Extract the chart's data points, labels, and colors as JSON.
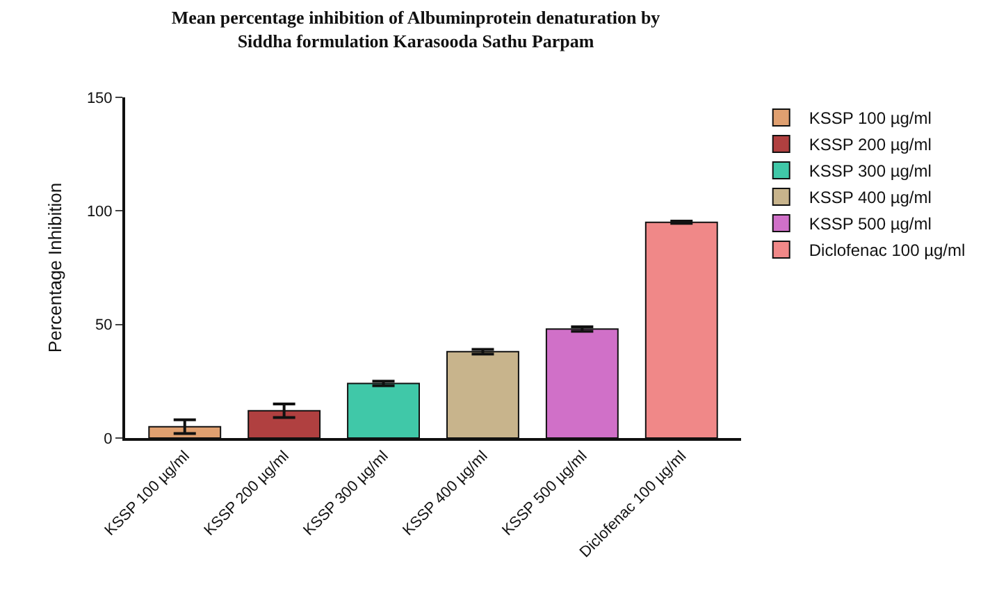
{
  "chart_data": {
    "type": "bar",
    "title": "Mean percentage inhibition of Albuminprotein denaturation by\nSiddha formulation Karasooda Sathu Parpam",
    "ylabel": "Percentage Inhibition",
    "categories": [
      "KSSP 100 µg/ml",
      "KSSP 200 µg/ml",
      "KSSP 300 µg/ml",
      "KSSP 400 µg/ml",
      "KSSP 500 µg/ml",
      "Diclofenac 100 µg/ml"
    ],
    "series": [
      {
        "name": "KSSP 100 µg/ml",
        "color": "#e0a070",
        "values": [
          5,
          null,
          null,
          null,
          null,
          null
        ],
        "errors": [
          3,
          null,
          null,
          null,
          null,
          null
        ]
      },
      {
        "name": "KSSP 200 µg/ml",
        "color": "#b04040",
        "values": [
          null,
          12,
          null,
          null,
          null,
          null
        ],
        "errors": [
          null,
          3,
          null,
          null,
          null,
          null
        ]
      },
      {
        "name": "KSSP 300 µg/ml",
        "color": "#40c8a8",
        "values": [
          null,
          null,
          24,
          null,
          null,
          null
        ],
        "errors": [
          null,
          null,
          1,
          null,
          null,
          null
        ]
      },
      {
        "name": "KSSP 400 µg/ml",
        "color": "#c8b48c",
        "values": [
          null,
          null,
          null,
          38,
          null,
          null
        ],
        "errors": [
          null,
          null,
          null,
          1,
          null,
          null
        ]
      },
      {
        "name": "KSSP 500 µg/ml",
        "color": "#d070c8",
        "values": [
          null,
          null,
          null,
          null,
          48,
          null
        ],
        "errors": [
          null,
          null,
          null,
          null,
          1,
          null
        ]
      },
      {
        "name": "Diclofenac 100 µg/ml",
        "color": "#f08888",
        "values": [
          null,
          null,
          null,
          null,
          null,
          95
        ],
        "errors": [
          null,
          null,
          null,
          null,
          null,
          0.5
        ]
      }
    ],
    "ylim": [
      0,
      150
    ],
    "yticks": [
      0,
      50,
      100,
      150
    ],
    "legend": "right"
  }
}
